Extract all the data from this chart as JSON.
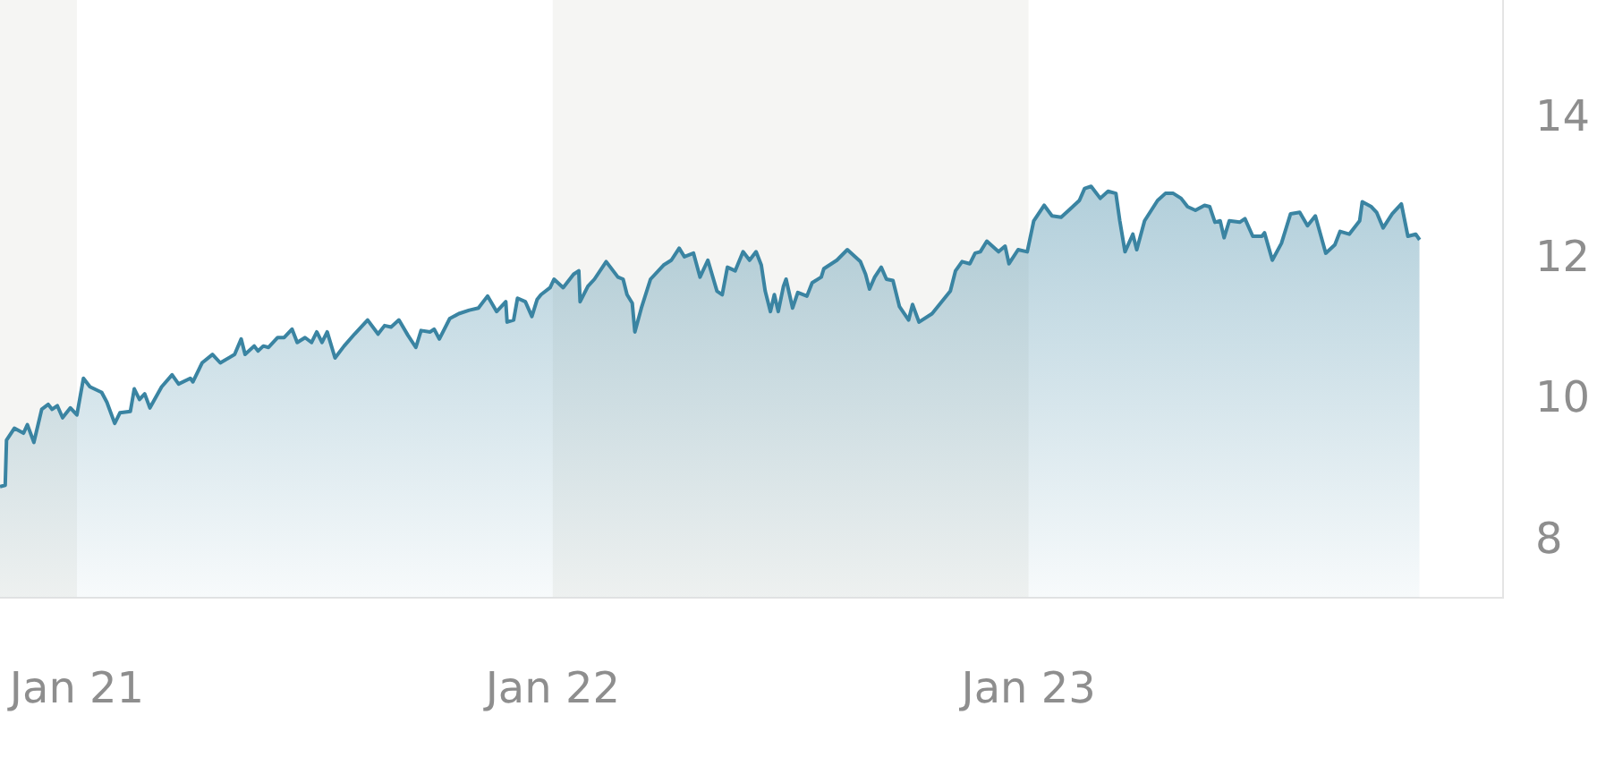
{
  "chart_data": {
    "type": "area",
    "x": [
      "2020-11-03",
      "2020-11-07",
      "2020-11-08",
      "2020-11-14",
      "2020-11-21",
      "2020-11-24",
      "2020-11-29",
      "2020-12-05",
      "2020-12-10",
      "2020-12-13",
      "2020-12-17",
      "2020-12-21",
      "2020-12-27",
      "2021-01-01",
      "2021-01-06",
      "2021-01-11",
      "2021-01-20",
      "2021-01-24",
      "2021-01-30",
      "2021-02-03",
      "2021-02-11",
      "2021-02-14",
      "2021-02-18",
      "2021-02-22",
      "2021-02-26",
      "2021-03-07",
      "2021-03-15",
      "2021-03-20",
      "2021-03-29",
      "2021-03-31",
      "2021-04-07",
      "2021-04-15",
      "2021-04-21",
      "2021-05-02",
      "2021-05-07",
      "2021-05-10",
      "2021-05-17",
      "2021-05-20",
      "2021-05-24",
      "2021-05-28",
      "2021-06-04",
      "2021-06-09",
      "2021-06-15",
      "2021-06-19",
      "2021-06-25",
      "2021-06-30",
      "2021-07-04",
      "2021-07-08",
      "2021-07-12",
      "2021-07-18",
      "2021-07-25",
      "2021-08-02",
      "2021-08-12",
      "2021-08-20",
      "2021-08-25",
      "2021-08-30",
      "2021-09-05",
      "2021-09-12",
      "2021-09-18",
      "2021-09-22",
      "2021-09-29",
      "2021-10-02",
      "2021-10-06",
      "2021-10-14",
      "2021-10-21",
      "2021-10-29",
      "2021-11-05",
      "2021-11-12",
      "2021-11-19",
      "2021-11-26",
      "2021-11-27",
      "2021-12-02",
      "2021-12-05",
      "2021-12-11",
      "2021-12-16",
      "2021-12-20",
      "2021-12-23",
      "2021-12-30",
      "2022-01-02",
      "2022-01-09",
      "2022-01-17",
      "2022-01-21",
      "2022-01-22",
      "2022-01-28",
      "2022-02-02",
      "2022-02-11",
      "2022-02-20",
      "2022-02-24",
      "2022-02-27",
      "2022-03-03",
      "2022-03-05",
      "2022-03-10",
      "2022-03-17",
      "2022-03-27",
      "2022-04-02",
      "2022-04-08",
      "2022-04-12",
      "2022-04-19",
      "2022-04-24",
      "2022-04-30",
      "2022-05-07",
      "2022-05-11",
      "2022-05-15",
      "2022-05-21",
      "2022-05-27",
      "2022-06-01",
      "2022-06-06",
      "2022-06-10",
      "2022-06-13",
      "2022-06-17",
      "2022-06-20",
      "2022-06-23",
      "2022-06-27",
      "2022-06-29",
      "2022-07-04",
      "2022-07-08",
      "2022-07-15",
      "2022-07-19",
      "2022-07-26",
      "2022-07-28",
      "2022-08-07",
      "2022-08-15",
      "2022-08-25",
      "2022-08-29",
      "2022-09-01",
      "2022-09-05",
      "2022-09-10",
      "2022-09-14",
      "2022-09-19",
      "2022-09-24",
      "2022-10-01",
      "2022-10-04",
      "2022-10-09",
      "2022-10-19",
      "2022-11-02",
      "2022-11-06",
      "2022-11-11",
      "2022-11-17",
      "2022-11-21",
      "2022-11-25",
      "2022-11-30",
      "2022-12-09",
      "2022-12-14",
      "2022-12-17",
      "2022-12-24",
      "2022-12-31",
      "2023-01-05",
      "2023-01-13",
      "2023-01-19",
      "2023-01-26",
      "2023-02-02",
      "2023-02-09",
      "2023-02-13",
      "2023-02-18",
      "2023-02-25",
      "2023-03-03",
      "2023-03-09",
      "2023-03-12",
      "2023-03-16",
      "2023-03-22",
      "2023-03-25",
      "2023-03-31",
      "2023-04-10",
      "2023-04-16",
      "2023-04-22",
      "2023-04-28",
      "2023-05-03",
      "2023-05-09",
      "2023-05-16",
      "2023-05-20",
      "2023-05-24",
      "2023-05-28",
      "2023-05-31",
      "2023-06-04",
      "2023-06-12",
      "2023-06-16",
      "2023-06-22",
      "2023-06-29",
      "2023-07-01",
      "2023-07-07",
      "2023-07-14",
      "2023-07-21",
      "2023-07-28",
      "2023-08-03",
      "2023-08-09",
      "2023-08-17",
      "2023-08-24",
      "2023-08-28",
      "2023-09-04",
      "2023-09-12",
      "2023-09-14",
      "2023-09-21",
      "2023-09-25",
      "2023-09-30",
      "2023-10-07",
      "2023-10-14",
      "2023-10-19",
      "2023-10-25",
      "2023-10-28"
    ],
    "series": [
      {
        "color": "#3a84a2",
        "values": [
          8.78,
          8.8,
          9.44,
          9.61,
          9.54,
          9.66,
          9.41,
          9.88,
          9.95,
          9.88,
          9.93,
          9.76,
          9.9,
          9.8,
          10.32,
          10.2,
          10.12,
          9.98,
          9.68,
          9.83,
          9.85,
          10.17,
          10.02,
          10.1,
          9.9,
          10.2,
          10.37,
          10.24,
          10.32,
          10.27,
          10.54,
          10.66,
          10.54,
          10.66,
          10.88,
          10.66,
          10.78,
          10.71,
          10.78,
          10.76,
          10.9,
          10.9,
          11.02,
          10.83,
          10.9,
          10.83,
          10.98,
          10.83,
          10.98,
          10.61,
          10.78,
          10.95,
          11.15,
          10.95,
          11.07,
          11.05,
          11.15,
          10.93,
          10.76,
          11.0,
          10.98,
          11.02,
          10.88,
          11.17,
          11.24,
          11.29,
          11.32,
          11.49,
          11.27,
          11.41,
          11.12,
          11.15,
          11.46,
          11.41,
          11.2,
          11.44,
          11.51,
          11.61,
          11.73,
          11.61,
          11.8,
          11.85,
          11.41,
          11.63,
          11.73,
          11.98,
          11.76,
          11.73,
          11.51,
          11.39,
          10.98,
          11.32,
          11.73,
          11.93,
          12.0,
          12.17,
          12.05,
          12.1,
          11.76,
          12.0,
          11.56,
          11.51,
          11.9,
          11.85,
          12.12,
          12.0,
          12.12,
          11.93,
          11.56,
          11.27,
          11.51,
          11.27,
          11.63,
          11.73,
          11.32,
          11.54,
          11.49,
          11.68,
          11.76,
          11.88,
          12.0,
          12.15,
          11.98,
          11.8,
          11.59,
          11.76,
          11.9,
          11.73,
          11.71,
          11.34,
          11.15,
          11.37,
          11.12,
          11.24,
          11.56,
          11.85,
          11.98,
          11.95,
          12.1,
          12.12,
          12.27,
          12.12,
          12.2,
          11.95,
          12.15,
          12.12,
          12.56,
          12.78,
          12.63,
          12.61,
          12.73,
          12.85,
          13.02,
          13.05,
          12.88,
          12.98,
          12.95,
          12.56,
          12.12,
          12.37,
          12.15,
          12.56,
          12.85,
          12.95,
          12.95,
          12.88,
          12.76,
          12.71,
          12.78,
          12.76,
          12.54,
          12.56,
          12.32,
          12.56,
          12.54,
          12.59,
          12.34,
          12.34,
          12.39,
          12.0,
          12.24,
          12.66,
          12.68,
          12.49,
          12.63,
          12.1,
          12.22,
          12.41,
          12.37,
          12.56,
          12.83,
          12.76,
          12.68,
          12.46,
          12.66,
          12.8,
          12.34,
          12.37,
          12.29
        ]
      }
    ],
    "xlim": [
      "2020-11-03",
      "2023-12-31"
    ],
    "xticks": [
      {
        "value": "2021-01-01",
        "label": "Jan 21"
      },
      {
        "value": "2022-01-01",
        "label": "Jan 22"
      },
      {
        "value": "2023-01-01",
        "label": "Jan 23"
      }
    ],
    "ylim": [
      7.2,
      15.7
    ],
    "yticks": [
      8,
      10,
      12,
      14
    ],
    "bands": [
      {
        "axis": "x",
        "from": "2020-11-03",
        "to": "2021-01-01",
        "color": "#f5f5f3"
      },
      {
        "axis": "x",
        "from": "2022-01-01",
        "to": "2023-01-01",
        "color": "#f5f5f3"
      }
    ],
    "grid": false,
    "legend": false,
    "marker": "none",
    "line_style": "solid"
  }
}
